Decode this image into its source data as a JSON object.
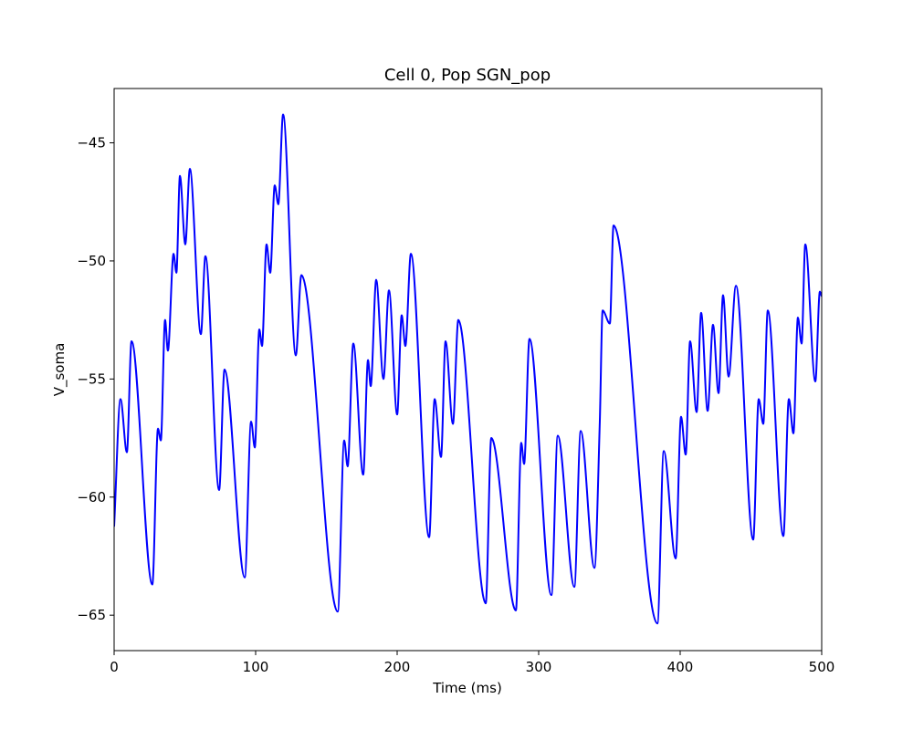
{
  "chart_data": {
    "type": "line",
    "title": "Cell 0, Pop SGN_pop",
    "x_label": "Time (ms)",
    "y_label": "V_soma",
    "xlim": [
      0,
      500
    ],
    "ylim": [
      -66.5,
      -42.7
    ],
    "xticks": [
      0,
      100,
      200,
      300,
      400,
      500
    ],
    "yticks": [
      {
        "value": -65,
        "label": "−65"
      },
      {
        "value": -60,
        "label": "−60"
      },
      {
        "value": -55,
        "label": "−55"
      },
      {
        "value": -50,
        "label": "−50"
      },
      {
        "value": -45,
        "label": "−45"
      }
    ],
    "series": [
      {
        "color": "#0000ff",
        "x": [
          0,
          4.5,
          9,
          12.3,
          27,
          31,
          33,
          36,
          38,
          42,
          44,
          46.5,
          50.3,
          53.5,
          61.3,
          64.5,
          74.2,
          78,
          92.3,
          96.8,
          99.4,
          102.6,
          104.5,
          107.7,
          110.3,
          113.5,
          116,
          119.4,
          128.4,
          132.3,
          158,
          162.6,
          165,
          169,
          176,
          179.4,
          181.3,
          185.2,
          190.3,
          194.2,
          200,
          203.2,
          205.8,
          209.7,
          222.6,
          226.5,
          231,
          234.2,
          239.4,
          243.2,
          262.6,
          266.5,
          283.9,
          287.7,
          289.7,
          293.5,
          309,
          313.5,
          325.2,
          329.7,
          339.4,
          343.2,
          345.2,
          350.3,
          352.9,
          383.9,
          388.4,
          396.8,
          400.6,
          403.9,
          407,
          411.6,
          414.8,
          419.4,
          423.2,
          427.1,
          430.3,
          434.2,
          439.4,
          451.6,
          455.5,
          458.7,
          461.9,
          472.9,
          476.8,
          480,
          483.2,
          485.8,
          488.4,
          495.5,
          498.7,
          500
        ],
        "values": [
          -61.25,
          -55.85,
          -58.1,
          -53.4,
          -63.7,
          -57.1,
          -57.6,
          -52.5,
          -53.8,
          -49.7,
          -50.5,
          -46.4,
          -49.3,
          -46.1,
          -53.1,
          -49.8,
          -59.7,
          -54.6,
          -63.4,
          -56.8,
          -57.9,
          -52.9,
          -53.6,
          -49.3,
          -50.5,
          -46.8,
          -47.6,
          -43.8,
          -54,
          -50.6,
          -64.85,
          -57.6,
          -58.7,
          -53.5,
          -59.05,
          -54.2,
          -55.3,
          -50.8,
          -55,
          -51.25,
          -56.5,
          -52.3,
          -53.6,
          -49.7,
          -61.7,
          -55.85,
          -58.3,
          -53.4,
          -56.9,
          -52.5,
          -64.5,
          -57.5,
          -64.8,
          -57.7,
          -58.6,
          -53.3,
          -64.15,
          -57.4,
          -63.8,
          -57.2,
          -63,
          -56.8,
          -52.1,
          -52.65,
          -48.5,
          -65.35,
          -58.05,
          -62.6,
          -56.6,
          -58.2,
          -53.4,
          -56.4,
          -52.2,
          -56.35,
          -52.7,
          -55.6,
          -51.45,
          -54.9,
          -51.05,
          -61.8,
          -55.85,
          -56.9,
          -52.1,
          -61.65,
          -55.85,
          -57.3,
          -52.4,
          -53.5,
          -49.3,
          -55.1,
          -51.3,
          -51.5
        ]
      }
    ]
  }
}
